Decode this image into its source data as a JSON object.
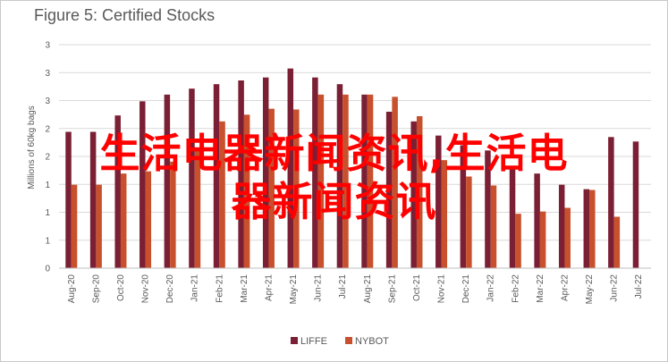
{
  "chart_data": {
    "type": "bar",
    "title": "Figure 5: Certified Stocks",
    "ylabel": "Millions of 60kg bags",
    "yticks": [
      "3",
      "3",
      "3",
      "2",
      "2",
      "1",
      "1",
      "1",
      "0"
    ],
    "ylim": [
      0,
      3
    ],
    "categories": [
      "Aug-20",
      "Sep-20",
      "Oct-20",
      "Nov-20",
      "Dec-20",
      "Jan-21",
      "Feb-21",
      "Mar-21",
      "Apr-21",
      "May-21",
      "Jun-21",
      "Jul-21",
      "Aug-21",
      "Sep-21",
      "Oct-21",
      "Nov-21",
      "Dec-21",
      "Jan-22",
      "Feb-22",
      "Mar-22",
      "Apr-22",
      "May-22",
      "Jun-22",
      "Jul-22"
    ],
    "series": [
      {
        "name": "LIFFE",
        "color": "#7b1f34",
        "values": [
          1.83,
          1.83,
          2.05,
          2.24,
          2.33,
          2.41,
          2.47,
          2.52,
          2.56,
          2.68,
          2.56,
          2.47,
          2.33,
          2.1,
          1.97,
          1.78,
          1.65,
          1.58,
          1.33,
          1.27,
          1.12,
          1.06,
          1.76,
          1.7
        ]
      },
      {
        "name": "NYBOT",
        "color": "#c8502d",
        "values": [
          1.12,
          1.12,
          1.27,
          1.3,
          1.43,
          1.58,
          1.97,
          2.06,
          2.14,
          2.13,
          2.33,
          2.33,
          2.33,
          2.3,
          2.04,
          1.45,
          1.23,
          1.11,
          0.73,
          0.76,
          0.81,
          1.05,
          0.69,
          null
        ]
      }
    ],
    "legend": "bottom",
    "grid": true
  },
  "watermark": {
    "line1": "生活电器新闻资讯,生活电",
    "line2": "器新闻资讯"
  }
}
